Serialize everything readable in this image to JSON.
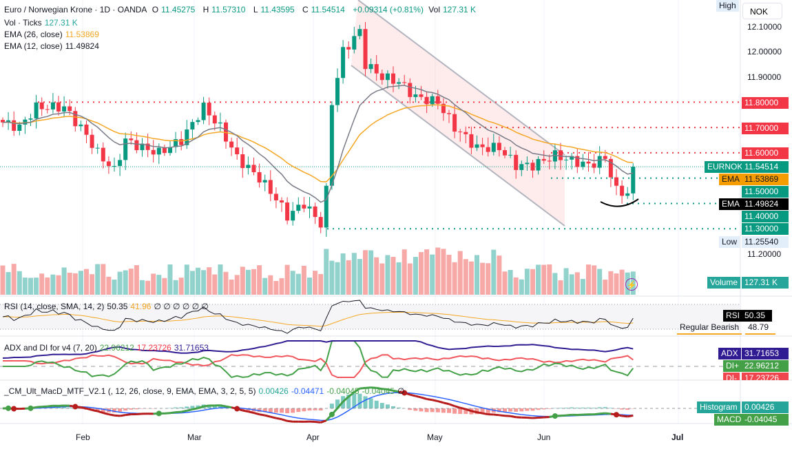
{
  "header": {
    "symbol": "Euro / Norwegian Krone · 1D · OANDA",
    "o_label": "O",
    "o": "11.45275",
    "h_label": "H",
    "h": "11.57310",
    "l_label": "L",
    "l": "11.43595",
    "c_label": "C",
    "c": "11.54514",
    "change": "+0.09314 (+0.81%)",
    "vol_label": "Vol",
    "vol": "127.31 K"
  },
  "legends": {
    "vol_label": "Vol · Ticks",
    "vol": "127.31 K",
    "ema26_label": "EMA (26, close)",
    "ema26": "11.53869",
    "ema12_label": "EMA (12, close)",
    "ema12": "11.49824",
    "rsi_label": "RSI (14, close, SMA, 14, 2)",
    "rsi": "50.35",
    "rsi_sma": "41.96",
    "rsi_extra": "∅ ∅ ∅ ∅ ∅ ∅",
    "adx_label": "ADX and DI for v4 (7, 20)",
    "di_plus": "22.96212",
    "di_minus": "17.23726",
    "adx": "31.71653",
    "macd_label": "_CM_Ult_MacD_MTF_V2.1 (, 12, 26, close, 9, EMA, EMA, 3, 2, 5, 5)",
    "m1": "0.00426",
    "m2": "-0.04471",
    "m3": "-0.04045",
    "m4": "-0.04045",
    "m5": "∅"
  },
  "axis": {
    "currency": "NOK",
    "high": "High",
    "low": "Low",
    "low_val": "11.25540",
    "ticks": [
      "12.10000",
      "12.00000",
      "11.90000",
      "11.20000"
    ],
    "levels_red": [
      "11.80000",
      "11.70000",
      "11.60000"
    ],
    "levels_green": [
      "11.50000",
      "11.40000",
      "11.30000"
    ],
    "eurnok_label": "EURNOK",
    "eurnok": "11.54514",
    "ema_label": "EMA",
    "ema26": "11.53869",
    "ema12": "11.49824",
    "volume_label": "Volume",
    "volume": "127.31 K",
    "rsi_label": "RSI",
    "rsi": "50.35",
    "div_label": "Regular Bearish",
    "div": "48.79",
    "adx_label": "ADX",
    "adx": "31.71653",
    "dip_label": "DI+",
    "dip": "22.96212",
    "dim_label": "DI-",
    "dim": "17.23726",
    "hist_label": "Histogram",
    "hist": "0.00426",
    "macd_label": "MACD",
    "macd": "-0.04045"
  },
  "time_axis": [
    "Feb",
    "Mar",
    "Apr",
    "May",
    "Jun",
    "Jul"
  ],
  "colors": {
    "up": "#089981",
    "down": "#f23645",
    "ema26": "#f5a623",
    "ema12": "#787b86"
  },
  "chart_data": {
    "type": "candlestick",
    "ylim": [
      11.18,
      12.16
    ],
    "keypoints": [
      [
        0,
        11.72
      ],
      [
        3,
        11.7
      ],
      [
        6,
        11.78
      ],
      [
        11,
        11.78
      ],
      [
        15,
        11.67
      ],
      [
        17,
        11.6
      ],
      [
        20,
        11.53
      ],
      [
        22,
        11.65
      ],
      [
        25,
        11.62
      ],
      [
        28,
        11.6
      ],
      [
        32,
        11.65
      ],
      [
        36,
        11.78
      ],
      [
        39,
        11.7
      ],
      [
        42,
        11.58
      ],
      [
        46,
        11.5
      ],
      [
        49,
        11.42
      ],
      [
        51,
        11.35
      ],
      [
        54,
        11.4
      ],
      [
        57,
        11.32
      ],
      [
        58,
        11.45
      ],
      [
        59,
        11.8
      ],
      [
        61,
        12.0
      ],
      [
        64,
        12.08
      ],
      [
        65,
        11.95
      ],
      [
        68,
        11.9
      ],
      [
        71,
        11.88
      ],
      [
        74,
        11.82
      ],
      [
        78,
        11.8
      ],
      [
        81,
        11.7
      ],
      [
        85,
        11.62
      ],
      [
        89,
        11.62
      ],
      [
        92,
        11.55
      ],
      [
        95,
        11.55
      ],
      [
        99,
        11.59
      ],
      [
        102,
        11.57
      ],
      [
        105,
        11.55
      ],
      [
        108,
        11.58
      ],
      [
        110,
        11.45
      ],
      [
        112,
        11.44
      ],
      [
        113,
        11.545
      ]
    ]
  }
}
